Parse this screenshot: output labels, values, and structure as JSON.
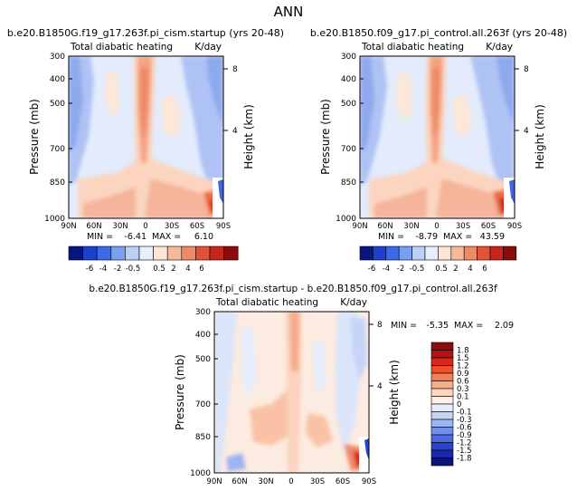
{
  "page": {
    "title": "ANN"
  },
  "chart_data": [
    {
      "type": "heatmap",
      "subtitle": "b.e20.B1850G.f19_g17.263f.pi_cism.startup (yrs 20-48)",
      "title": "Total diabatic heating",
      "units": "K/day",
      "xlabel": "",
      "ylabel": "Pressure (mb)",
      "y2label": "Height (km)",
      "x_ticks": [
        "90N",
        "60N",
        "30N",
        "0",
        "30S",
        "60S",
        "90S"
      ],
      "y_ticks": [
        "300",
        "400",
        "500",
        "700",
        "850",
        "1000"
      ],
      "y2_ticks": [
        "8",
        "4"
      ],
      "xlim": [
        90,
        -90
      ],
      "ylim": [
        1000,
        300
      ],
      "min_label": "MIN =",
      "min": "-6.41",
      "max_label": "MAX =",
      "max": "6.10",
      "colorbar_labels": [
        "-6",
        "-4",
        "-2",
        "-0.5",
        "0.5",
        "2",
        "4",
        "6"
      ]
    },
    {
      "type": "heatmap",
      "subtitle": "b.e20.B1850.f09_g17.pi_control.all.263f (yrs 20-48)",
      "title": "Total diabatic heating",
      "units": "K/day",
      "xlabel": "",
      "ylabel": "Pressure (mb)",
      "y2label": "Height (km)",
      "x_ticks": [
        "90N",
        "60N",
        "30N",
        "0",
        "30S",
        "60S",
        "90S"
      ],
      "y_ticks": [
        "300",
        "400",
        "500",
        "700",
        "850",
        "1000"
      ],
      "y2_ticks": [
        "8",
        "4"
      ],
      "xlim": [
        90,
        -90
      ],
      "ylim": [
        1000,
        300
      ],
      "min_label": "MIN =",
      "min": "-8.79",
      "max_label": "MAX =",
      "max": "43.59",
      "colorbar_labels": [
        "-6",
        "-4",
        "-2",
        "-0.5",
        "0.5",
        "2",
        "4",
        "6"
      ]
    },
    {
      "type": "heatmap",
      "subtitle": "b.e20.B1850G.f19_g17.263f.pi_cism.startup - b.e20.B1850.f09_g17.pi_control.all.263f",
      "title": "Total diabatic heating",
      "units": "K/day",
      "xlabel": "",
      "ylabel": "Pressure (mb)",
      "y2label": "Height (km)",
      "x_ticks": [
        "90N",
        "60N",
        "30N",
        "0",
        "30S",
        "60S",
        "90S"
      ],
      "y_ticks": [
        "300",
        "400",
        "500",
        "700",
        "850",
        "1000"
      ],
      "y2_ticks": [
        "8",
        "4"
      ],
      "xlim": [
        90,
        -90
      ],
      "ylim": [
        1000,
        300
      ],
      "min_label": "MIN =",
      "min": "-5.35",
      "max_label": "MAX =",
      "max": "2.09",
      "colorbar_labels": [
        "1.8",
        "1.5",
        "1.2",
        "0.9",
        "0.6",
        "0.3",
        "0.1",
        "0",
        "-0.1",
        "-0.3",
        "-0.6",
        "-0.9",
        "-1.2",
        "-1.5",
        "-1.8"
      ]
    }
  ],
  "colors": {
    "top_colorbar": [
      "#0a1680",
      "#1f3fcf",
      "#3d6ae6",
      "#7a9ff0",
      "#bcd0f6",
      "#e8eefc",
      "#fde6d6",
      "#f6b99c",
      "#ee8a67",
      "#e0533a",
      "#c7261d",
      "#8c0b0b"
    ],
    "diff_colorbar": [
      "#8c0b0b",
      "#b31410",
      "#d8261b",
      "#ec4f2e",
      "#f47e56",
      "#f9ad8a",
      "#fcd6bf",
      "#fff0e6",
      "#e6edfc",
      "#c5d4f7",
      "#9db4f1",
      "#7290ea",
      "#4d6be2",
      "#2a42cc",
      "#1828a8",
      "#0b147a"
    ]
  }
}
